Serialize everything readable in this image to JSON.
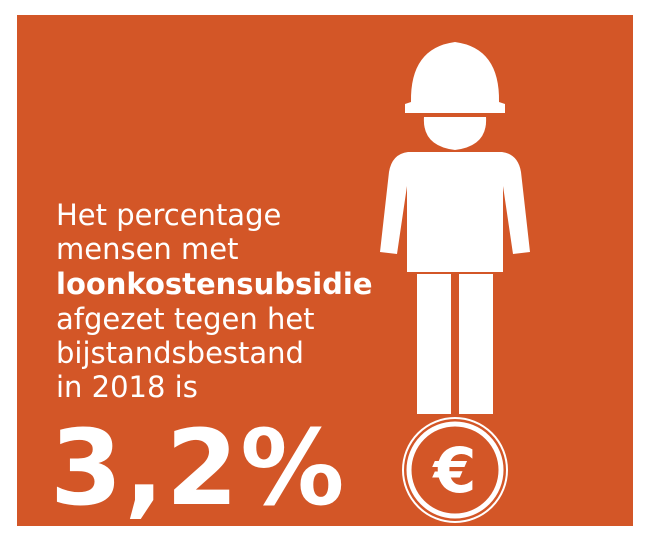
{
  "text_lines": [
    "Het percentage",
    "mensen met",
    "loonkostensubsidie",
    "afgezet tegen het",
    "bijstandsbestand",
    "in 2018 is"
  ],
  "highlight": "3,2%",
  "coin_symbol": "€"
}
